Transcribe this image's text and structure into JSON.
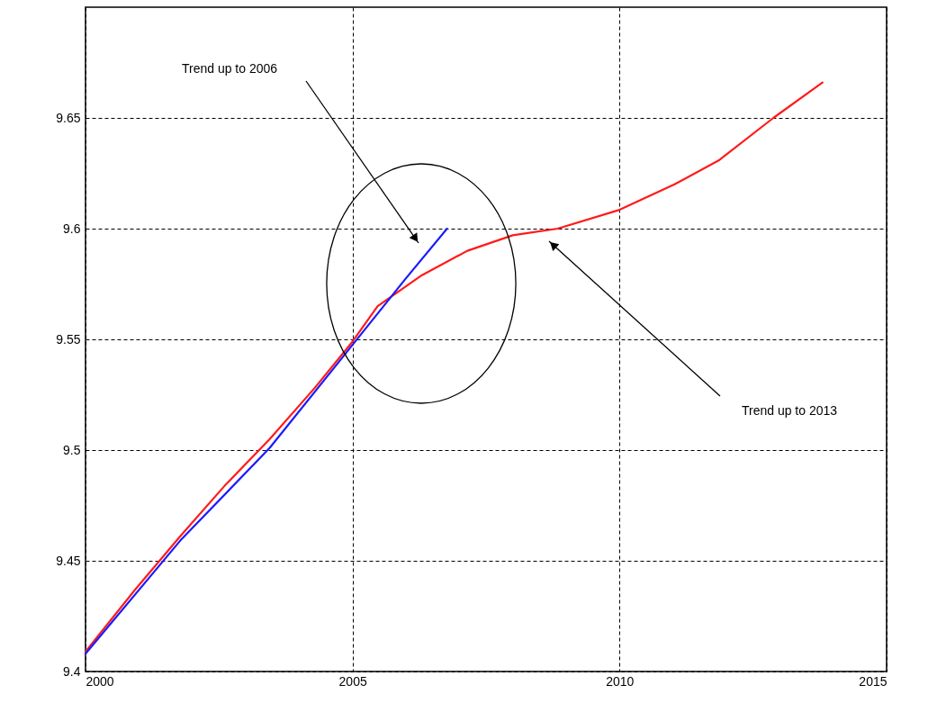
{
  "chart_data": {
    "type": "line",
    "xlim": [
      2000,
      2015
    ],
    "ylim": [
      9.4,
      9.7
    ],
    "xticks": [
      2000,
      2005,
      2010,
      2015
    ],
    "yticks": [
      9.4,
      9.45,
      9.5,
      9.55,
      9.6,
      9.65
    ],
    "grid": true,
    "line_style": "solid",
    "marker": "none",
    "series": [
      {
        "color": "#ff1a1a",
        "x": [
          2000,
          2000.93,
          2001.77,
          2002.61,
          2003.45,
          2004.29,
          2005,
          2005.47,
          2006.3,
          2007.15,
          2008,
          2008.84,
          2010,
          2011.03,
          2011.87,
          2012.88,
          2013.8
        ],
        "values": [
          9.409,
          9.437,
          9.461,
          9.484,
          9.505,
          9.528,
          9.549,
          9.565,
          9.579,
          9.59,
          9.597,
          9.6,
          9.6085,
          9.62,
          9.631,
          9.65,
          9.666
        ]
      },
      {
        "color": "#1a1aff",
        "x": [
          2000,
          2001.77,
          2003.45,
          2005,
          2005.98,
          2006.77
        ],
        "values": [
          9.408,
          9.459,
          9.501,
          9.5475,
          9.577,
          9.6
        ]
      }
    ],
    "annotations": [
      "Trend up to 2006",
      "Trend up to 2013"
    ]
  }
}
